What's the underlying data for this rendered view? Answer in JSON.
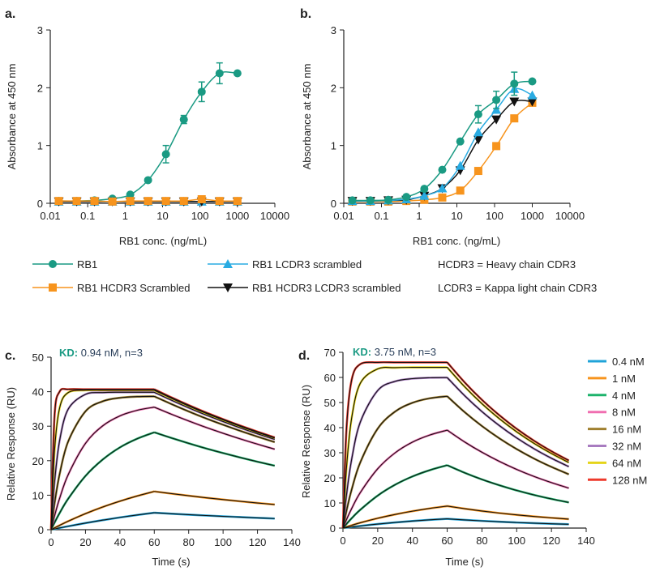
{
  "panels": {
    "a": {
      "letter": "a.",
      "ylabel": "Absorbance at 450 nm",
      "xlabel": "RB1 conc. (ng/mL)"
    },
    "b": {
      "letter": "b.",
      "ylabel": "Absorbance at 450 nm",
      "xlabel": "RB1 conc. (ng/mL)"
    },
    "c": {
      "letter": "c.",
      "ylabel": "Relative Response (RU)",
      "xlabel": "Time (s)",
      "kd_label": "KD:",
      "kd_value": " 0.94 nM, n=3"
    },
    "d": {
      "letter": "d.",
      "ylabel": "Relative Response (RU)",
      "xlabel": "Time (s)",
      "kd_label": "KD:",
      "kd_value": " 3.75 nM, n=3"
    }
  },
  "legend_elisa": {
    "items": [
      {
        "label": "RB1",
        "marker": "circle",
        "color": "#1a9a83"
      },
      {
        "label": "RB1 HCDR3 Scrambled",
        "marker": "square",
        "color": "#f7941d"
      },
      {
        "label": "RB1 LCDR3 scrambled",
        "marker": "triangle-up",
        "color": "#29abe2"
      },
      {
        "label": "RB1 HCDR3 LCDR3 scrambled",
        "marker": "triangle-down",
        "color": "#111111"
      }
    ],
    "notes": [
      "HCDR3 = Heavy chain CDR3",
      "LCDR3 = Kappa light chain CDR3"
    ]
  },
  "chart_data": [
    {
      "panel": "a",
      "type": "scatter",
      "xlabel": "RB1 conc. (ng/mL)",
      "ylabel": "Absorbance at 450 nm",
      "xscale": "log",
      "xlim": [
        0.01,
        10000
      ],
      "ylim": [
        0,
        3
      ],
      "xticks": [
        "0.01",
        "0.1",
        "1",
        "10",
        "100",
        "1000",
        "10000"
      ],
      "yticks": [
        "0",
        "1",
        "2",
        "3"
      ],
      "grid": false,
      "x": [
        0.0169,
        0.0508,
        0.152,
        0.457,
        1.37,
        4.1,
        12.3,
        37,
        111,
        333,
        1000
      ],
      "series": [
        {
          "name": "RB1",
          "color": "#1a9a83",
          "marker": "circle",
          "values": [
            0.04,
            0.04,
            0.05,
            0.08,
            0.15,
            0.4,
            0.85,
            1.45,
            1.93,
            2.25,
            2.25
          ],
          "errors": [
            0,
            0,
            0,
            0,
            0,
            0,
            0.15,
            0.07,
            0.17,
            0.18,
            0
          ]
        },
        {
          "name": "RB1 LCDR3 scrambled",
          "color": "#29abe2",
          "marker": "triangle-up",
          "values": [
            0.03,
            0.03,
            0.03,
            0.03,
            0.03,
            0.03,
            0.03,
            0.03,
            0.03,
            0.03,
            0.03
          ]
        },
        {
          "name": "RB1 HCDR3 LCDR3 scrambled",
          "color": "#111111",
          "marker": "triangle-down",
          "values": [
            0.03,
            0.03,
            0.03,
            0.03,
            0.03,
            0.03,
            0.03,
            0.03,
            0.03,
            0.03,
            0.03
          ]
        },
        {
          "name": "RB1 HCDR3 Scrambled",
          "color": "#f7941d",
          "marker": "square",
          "values": [
            0.04,
            0.04,
            0.04,
            0.03,
            0.04,
            0.04,
            0.04,
            0.04,
            0.07,
            0.04,
            0.04
          ]
        }
      ]
    },
    {
      "panel": "b",
      "type": "scatter",
      "xlabel": "RB1 conc. (ng/mL)",
      "ylabel": "Absorbance at 450 nm",
      "xscale": "log",
      "xlim": [
        0.01,
        10000
      ],
      "ylim": [
        0,
        3
      ],
      "xticks": [
        "0.01",
        "0.1",
        "1",
        "10",
        "100",
        "1000",
        "10000"
      ],
      "yticks": [
        "0",
        "1",
        "2",
        "3"
      ],
      "grid": false,
      "x": [
        0.0169,
        0.0508,
        0.152,
        0.457,
        1.37,
        4.1,
        12.3,
        37,
        111,
        333,
        1000
      ],
      "series": [
        {
          "name": "RB1 HCDR3 Scrambled",
          "color": "#f7941d",
          "marker": "square",
          "values": [
            0.03,
            0.03,
            0.03,
            0.04,
            0.06,
            0.1,
            0.22,
            0.56,
            0.99,
            1.47,
            1.74
          ]
        },
        {
          "name": "RB1 HCDR3 LCDR3 scrambled",
          "color": "#111111",
          "marker": "triangle-down",
          "values": [
            0.04,
            0.04,
            0.05,
            0.06,
            0.13,
            0.26,
            0.57,
            1.1,
            1.45,
            1.76,
            1.76
          ]
        },
        {
          "name": "RB1 LCDR3 scrambled",
          "color": "#29abe2",
          "marker": "triangle-up",
          "values": [
            0.04,
            0.04,
            0.05,
            0.07,
            0.13,
            0.26,
            0.65,
            1.23,
            1.62,
            1.98,
            1.87
          ]
        },
        {
          "name": "RB1",
          "color": "#1a9a83",
          "marker": "circle",
          "values": [
            0.05,
            0.05,
            0.06,
            0.11,
            0.25,
            0.58,
            1.07,
            1.54,
            1.79,
            2.07,
            2.11
          ],
          "errors": [
            0,
            0,
            0,
            0,
            0,
            0,
            0,
            0.15,
            0.15,
            0.2,
            0
          ]
        }
      ]
    },
    {
      "panel": "c",
      "type": "line",
      "xlabel": "Time (s)",
      "ylabel": "Relative Response (RU)",
      "xlim": [
        0,
        140
      ],
      "ylim": [
        0,
        50
      ],
      "xticks": [
        "0",
        "20",
        "40",
        "60",
        "80",
        "100",
        "120",
        "140"
      ],
      "yticks": [
        "0",
        "10",
        "20",
        "30",
        "40",
        "50"
      ],
      "grid": false,
      "annotation": "KD: 0.94 nM, n=3",
      "x": [
        0,
        2,
        5,
        10,
        20,
        30,
        40,
        50,
        60,
        70,
        80,
        90,
        100,
        110,
        120,
        130
      ],
      "series": [
        {
          "name": "0.4 nM",
          "color": "#1fa3d8",
          "values": [
            0,
            0.21,
            0.51,
            1.0,
            1.92,
            2.77,
            3.55,
            4.26,
            4.92,
            4.63,
            4.36,
            4.11,
            3.87,
            3.65,
            3.43,
            3.23
          ]
        },
        {
          "name": "1 nM",
          "color": "#f7941d",
          "values": [
            0,
            0.52,
            1.27,
            2.47,
            4.65,
            6.57,
            8.26,
            9.76,
            11.09,
            10.45,
            9.84,
            9.26,
            8.73,
            8.22,
            7.74,
            7.29
          ]
        },
        {
          "name": "4 nM",
          "color": "#1db36b",
          "values": [
            0,
            2.04,
            4.85,
            9.0,
            15.57,
            20.32,
            23.84,
            26.36,
            28.22,
            26.58,
            25.03,
            23.56,
            22.21,
            20.91,
            19.7,
            18.54
          ]
        },
        {
          "name": "8 nM",
          "color": "#f06eb0",
          "values": [
            0,
            3.96,
            9.14,
            16.0,
            25.02,
            30.09,
            32.98,
            34.6,
            35.52,
            33.46,
            31.51,
            29.66,
            27.95,
            26.32,
            24.79,
            23.34
          ]
        },
        {
          "name": "16 nM",
          "color": "#a08030",
          "values": [
            0,
            7.55,
            16.18,
            25.63,
            34.3,
            37.21,
            38.22,
            38.56,
            38.64,
            36.4,
            34.27,
            32.26,
            30.41,
            28.63,
            26.97,
            25.39
          ]
        },
        {
          "name": "32 nM",
          "color": "#a87cc0",
          "values": [
            0,
            13.7,
            25.93,
            34.97,
            39.23,
            39.75,
            39.83,
            39.83,
            39.83,
            37.52,
            35.33,
            33.26,
            31.35,
            29.51,
            27.8,
            26.17
          ]
        },
        {
          "name": "64 nM",
          "color": "#e5d41a",
          "values": [
            0,
            22.83,
            35.36,
            39.76,
            40.41,
            40.41,
            40.41,
            40.41,
            40.41,
            38.07,
            35.84,
            33.74,
            31.8,
            29.94,
            28.21,
            26.55
          ]
        },
        {
          "name": "128 nM",
          "color": "#ee3a2c",
          "values": [
            0,
            32.89,
            40.05,
            40.7,
            40.7,
            40.7,
            40.7,
            40.7,
            40.7,
            38.34,
            36.1,
            33.98,
            32.03,
            30.16,
            28.41,
            26.74
          ]
        }
      ]
    },
    {
      "panel": "d",
      "type": "line",
      "xlabel": "Time (s)",
      "ylabel": "Relative Response (RU)",
      "xlim": [
        0,
        140
      ],
      "ylim": [
        0,
        70
      ],
      "xticks": [
        "0",
        "20",
        "40",
        "60",
        "80",
        "100",
        "120",
        "140"
      ],
      "yticks": [
        "0",
        "10",
        "20",
        "30",
        "40",
        "50",
        "60",
        "70"
      ],
      "grid": false,
      "legend": "right",
      "annotation": "KD: 3.75 nM, n=3",
      "x": [
        0,
        2,
        5,
        10,
        20,
        30,
        40,
        50,
        60,
        70,
        80,
        90,
        100,
        110,
        120,
        130
      ],
      "series": [
        {
          "name": "0.4 nM",
          "color": "#1fa3d8",
          "values": [
            0,
            0.18,
            0.44,
            0.85,
            1.6,
            2.24,
            2.79,
            3.28,
            3.7,
            3.26,
            2.86,
            2.52,
            2.22,
            1.95,
            1.72,
            1.51
          ]
        },
        {
          "name": "1 nM",
          "color": "#f7941d",
          "values": [
            0,
            0.45,
            1.1,
            2.12,
            3.91,
            5.43,
            6.73,
            7.83,
            8.77,
            7.72,
            6.79,
            5.97,
            5.25,
            4.62,
            4.07,
            3.58
          ]
        },
        {
          "name": "4 nM",
          "color": "#1db36b",
          "values": [
            0,
            1.62,
            3.9,
            7.31,
            12.94,
            17.25,
            20.56,
            23.08,
            25.03,
            22.03,
            19.37,
            17.05,
            14.99,
            13.19,
            11.61,
            10.21
          ]
        },
        {
          "name": "8 nM",
          "color": "#f06eb0",
          "values": [
            0,
            3.3,
            7.76,
            14.15,
            23.62,
            29.96,
            34.24,
            37.07,
            39.0,
            34.32,
            30.19,
            26.56,
            23.36,
            20.55,
            18.1,
            15.91
          ]
        },
        {
          "name": "16 nM",
          "color": "#a08030",
          "values": [
            0,
            6.74,
            15.3,
            26.2,
            39.6,
            46.4,
            49.9,
            51.7,
            52.5,
            46.2,
            40.64,
            35.75,
            31.45,
            27.67,
            24.36,
            21.42
          ]
        },
        {
          "name": "32 nM",
          "color": "#a87cc0",
          "values": [
            0,
            12.96,
            27.36,
            42.24,
            54.78,
            58.44,
            59.52,
            59.88,
            59.94,
            52.75,
            46.39,
            40.82,
            35.9,
            31.59,
            27.81,
            24.46
          ]
        },
        {
          "name": "64 nM",
          "color": "#e5d41a",
          "values": [
            0,
            23.7,
            43.8,
            57.7,
            63.4,
            63.9,
            64,
            64,
            64,
            56.32,
            49.54,
            43.58,
            38.34,
            33.73,
            29.7,
            26.11
          ]
        },
        {
          "name": "128 nM",
          "color": "#ee3a2c",
          "values": [
            0,
            39.1,
            59.0,
            65.3,
            66,
            66,
            66,
            66,
            66,
            58.08,
            51.08,
            44.95,
            39.53,
            34.78,
            30.62,
            26.93
          ]
        }
      ]
    }
  ]
}
